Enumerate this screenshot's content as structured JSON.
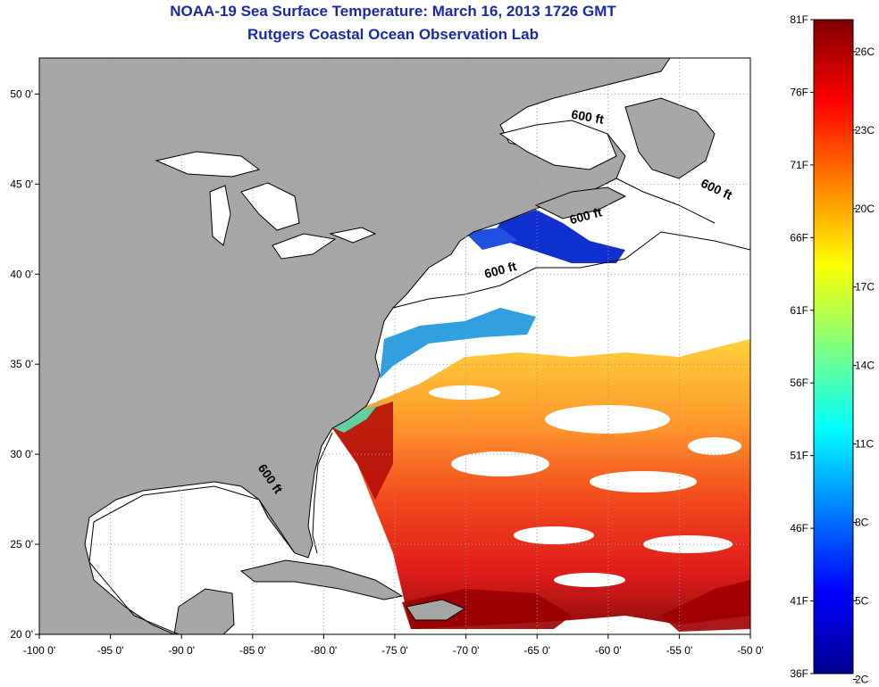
{
  "header": {
    "title": "NOAA-19 Sea Surface Temperature:  March 16, 2013 1726 GMT",
    "subtitle": "Rutgers Coastal Ocean Observation Lab"
  },
  "map": {
    "lon_range": [
      -100,
      -50
    ],
    "lat_range": [
      20,
      52
    ],
    "lat_ticks": [
      "50 0'",
      "45 0'",
      "40 0'",
      "35 0'",
      "30 0'",
      "25 0'",
      "20 0'"
    ],
    "lat_values": [
      50,
      45,
      40,
      35,
      30,
      25,
      20
    ],
    "lon_ticks": [
      "-100 0'",
      "-95 0'",
      "-90 0'",
      "-85 0'",
      "-80 0'",
      "-75 0'",
      "-70 0'",
      "-65 0'",
      "-60 0'",
      "-55 0'",
      "-50 0'"
    ],
    "lon_values": [
      -100,
      -95,
      -90,
      -85,
      -80,
      -75,
      -70,
      -65,
      -60,
      -55,
      -50
    ],
    "grid": "dotted",
    "contour_label": "600 ft",
    "contour_label_positions": [
      {
        "lon": -61.5,
        "lat": 48.5,
        "angle": 10
      },
      {
        "lon": -52.5,
        "lat": 44.5,
        "angle": 25
      },
      {
        "lon": -61.5,
        "lat": 43.0,
        "angle": -15
      },
      {
        "lon": -67.5,
        "lat": 40.0,
        "angle": -15
      },
      {
        "lon": -84.0,
        "lat": 28.5,
        "angle": 55
      }
    ],
    "colors": {
      "land": "#a6a6a6",
      "ocean": "#ffffff",
      "coast": "#000000",
      "grid": "#9a9a9a"
    }
  },
  "colorbar": {
    "range_f": [
      36,
      81
    ],
    "f_labels": [
      "81F",
      "76F",
      "71F",
      "66F",
      "61F",
      "56F",
      "51F",
      "46F",
      "41F",
      "36F"
    ],
    "f_values": [
      81,
      76,
      71,
      66,
      61,
      56,
      51,
      46,
      41,
      36
    ],
    "c_labels": [
      "26C",
      "23C",
      "20C",
      "17C",
      "14C",
      "11C",
      "8C",
      "5C",
      "2C"
    ],
    "c_values": [
      26,
      23,
      20,
      17,
      14,
      11,
      8,
      5,
      2
    ],
    "colormap": "jet"
  }
}
